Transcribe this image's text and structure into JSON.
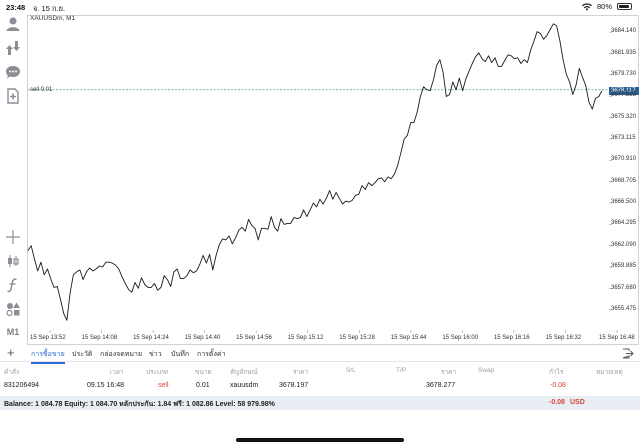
{
  "status_bar": {
    "time": "23:48",
    "date": "จ. 15 ก.ย.",
    "battery_percent": 80,
    "battery_label": "80%"
  },
  "toolbar": {
    "icons": [
      "user-icon",
      "trade-arrows-icon",
      "chat-icon",
      "add-document-icon",
      "crosshair-icon",
      "candlestick-icon",
      "function-icon",
      "objects-icon"
    ],
    "timeframe_label": "M1"
  },
  "chart": {
    "symbol_label": "XAUUSDm, M1",
    "sell_order_label": "sell 0.01",
    "current_price_label": "3678.117",
    "colors": {
      "price_line": "#1a1a1a",
      "order_line": "#5a9a8a",
      "current_price_bg": "#2c5f8f",
      "border": "#cfd3d8"
    }
  },
  "chart_data": {
    "type": "line",
    "series": [
      {
        "values": [
          3661.6,
          3662.1,
          3660.7,
          3659.5,
          3660.4,
          3659.1,
          3659.7,
          3658.7,
          3657.8,
          3657.9,
          3656.6,
          3655.1,
          3654.4,
          3657.3,
          3659.1,
          3659.4,
          3659.6,
          3658.6,
          3659.4,
          3659.8,
          3659.5,
          3659.7,
          3660.0,
          3659.9,
          3660.4,
          3660.4,
          3660.3,
          3660.1,
          3659.7,
          3658.9,
          3658.2,
          3657.6,
          3657.3,
          3658.3,
          3657.7,
          3658.8,
          3658.1,
          3657.8,
          3657.8,
          3658.2,
          3657.5,
          3657.8,
          3659.0,
          3658.6,
          3657.9,
          3659.4,
          3659.7,
          3658.7,
          3658.7,
          3659.0,
          3659.6,
          3659.3,
          3659.5,
          3660.2,
          3661.1,
          3660.3,
          3661.2,
          3659.6,
          3661.1,
          3662.2,
          3662.8,
          3662.7,
          3663.1,
          3662.3,
          3662.9,
          3663.7,
          3664.0,
          3663.6,
          3664.8,
          3664.2,
          3663.9,
          3662.7,
          3663.9,
          3663.9,
          3663.8,
          3665.1,
          3664.0,
          3663.6,
          3664.9,
          3664.3,
          3664.4,
          3664.4,
          3665.0,
          3664.9,
          3665.0,
          3665.8,
          3665.1,
          3665.8,
          3666.5,
          3666.1,
          3666.9,
          3666.4,
          3667.0,
          3667.8,
          3666.9,
          3667.6,
          3667.0,
          3666.4,
          3666.7,
          3666.6,
          3666.8,
          3667.3,
          3667.4,
          3668.3,
          3667.9,
          3668.6,
          3668.3,
          3668.6,
          3669.0,
          3669.1,
          3668.7,
          3669.2,
          3669.0,
          3669.5,
          3670.4,
          3671.7,
          3673.1,
          3673.5,
          3674.8,
          3674.8,
          3675.9,
          3677.5,
          3678.5,
          3678.2,
          3678.1,
          3679.2,
          3680.7,
          3681.3,
          3680.0,
          3677.5,
          3677.7,
          3679.0,
          3678.2,
          3679.4,
          3678.1,
          3679.3,
          3680.1,
          3680.9,
          3681.6,
          3682.0,
          3681.4,
          3681.1,
          3681.7,
          3681.0,
          3681.5,
          3680.6,
          3680.6,
          3681.2,
          3681.8,
          3681.7,
          3681.4,
          3681.5,
          3680.9,
          3681.3,
          3681.0,
          3682.3,
          3683.2,
          3684.2,
          3684.0,
          3683.4,
          3683.8,
          3684.4,
          3685.0,
          3684.8,
          3683.3,
          3681.3,
          3679.8,
          3679.0,
          3677.7,
          3678.7,
          3680.4,
          3679.5,
          3678.6,
          3676.9,
          3676.2,
          3677.3,
          3677.5,
          3678.1
        ]
      }
    ],
    "x_tick_labels": [
      "15 Sep 13:52",
      "15 Sep 14:08",
      "15 Sep 14:24",
      "15 Sep 14:40",
      "15 Sep 14:56",
      "15 Sep 15:12",
      "15 Sep 15:28",
      "15 Sep 15:44",
      "15 Sep 16:00",
      "15 Sep 16:16",
      "15 Sep 16:32",
      "15 Sep 16:48"
    ],
    "y_tick_labels": [
      "3684.140",
      "3681.935",
      "3679.730",
      "3677.525",
      "3675.320",
      "3673.115",
      "3670.910",
      "3668.705",
      "3666.500",
      "3664.295",
      "3662.090",
      "3659.885",
      "3657.680",
      "3655.475"
    ],
    "ylim": [
      3653.4,
      3685.6
    ],
    "sell_order_level": 3678.197,
    "current_price": 3678.117,
    "grid": false
  },
  "tabs": {
    "items": [
      {
        "label": "การซื้อขาย",
        "active": true
      },
      {
        "label": "ประวัติ",
        "active": false
      },
      {
        "label": "กล่องจดหมาย",
        "active": false
      },
      {
        "label": "ข่าว",
        "active": false
      },
      {
        "label": "บันทึก",
        "active": false
      },
      {
        "label": "การตั้งค่า",
        "active": false
      }
    ]
  },
  "trade_table": {
    "headers": [
      "คำสั่ง",
      "เวลา",
      "ประเภท",
      "ขนาด",
      "สัญลักษณ์",
      "ราคา",
      "S/L",
      "T/P",
      "ราคา",
      "Swap",
      "กำไร",
      "หมายเหตุ"
    ],
    "row": {
      "order": "831206494",
      "time": "09.15 16:48",
      "type": "sell",
      "volume": "0.01",
      "symbol": "xauusdm",
      "open_price": "3678.197",
      "sl": "",
      "tp": "",
      "current_price": "3678.277",
      "swap": "",
      "profit": "-0.08",
      "comment": ""
    },
    "balance_line": "Balance: 1 084.78 Equity: 1 084.70 หลักประกัน: 1.84 ฟรี: 1 082.86 Level: 58 979.98%",
    "total_profit": "-0.08",
    "currency": "USD"
  }
}
